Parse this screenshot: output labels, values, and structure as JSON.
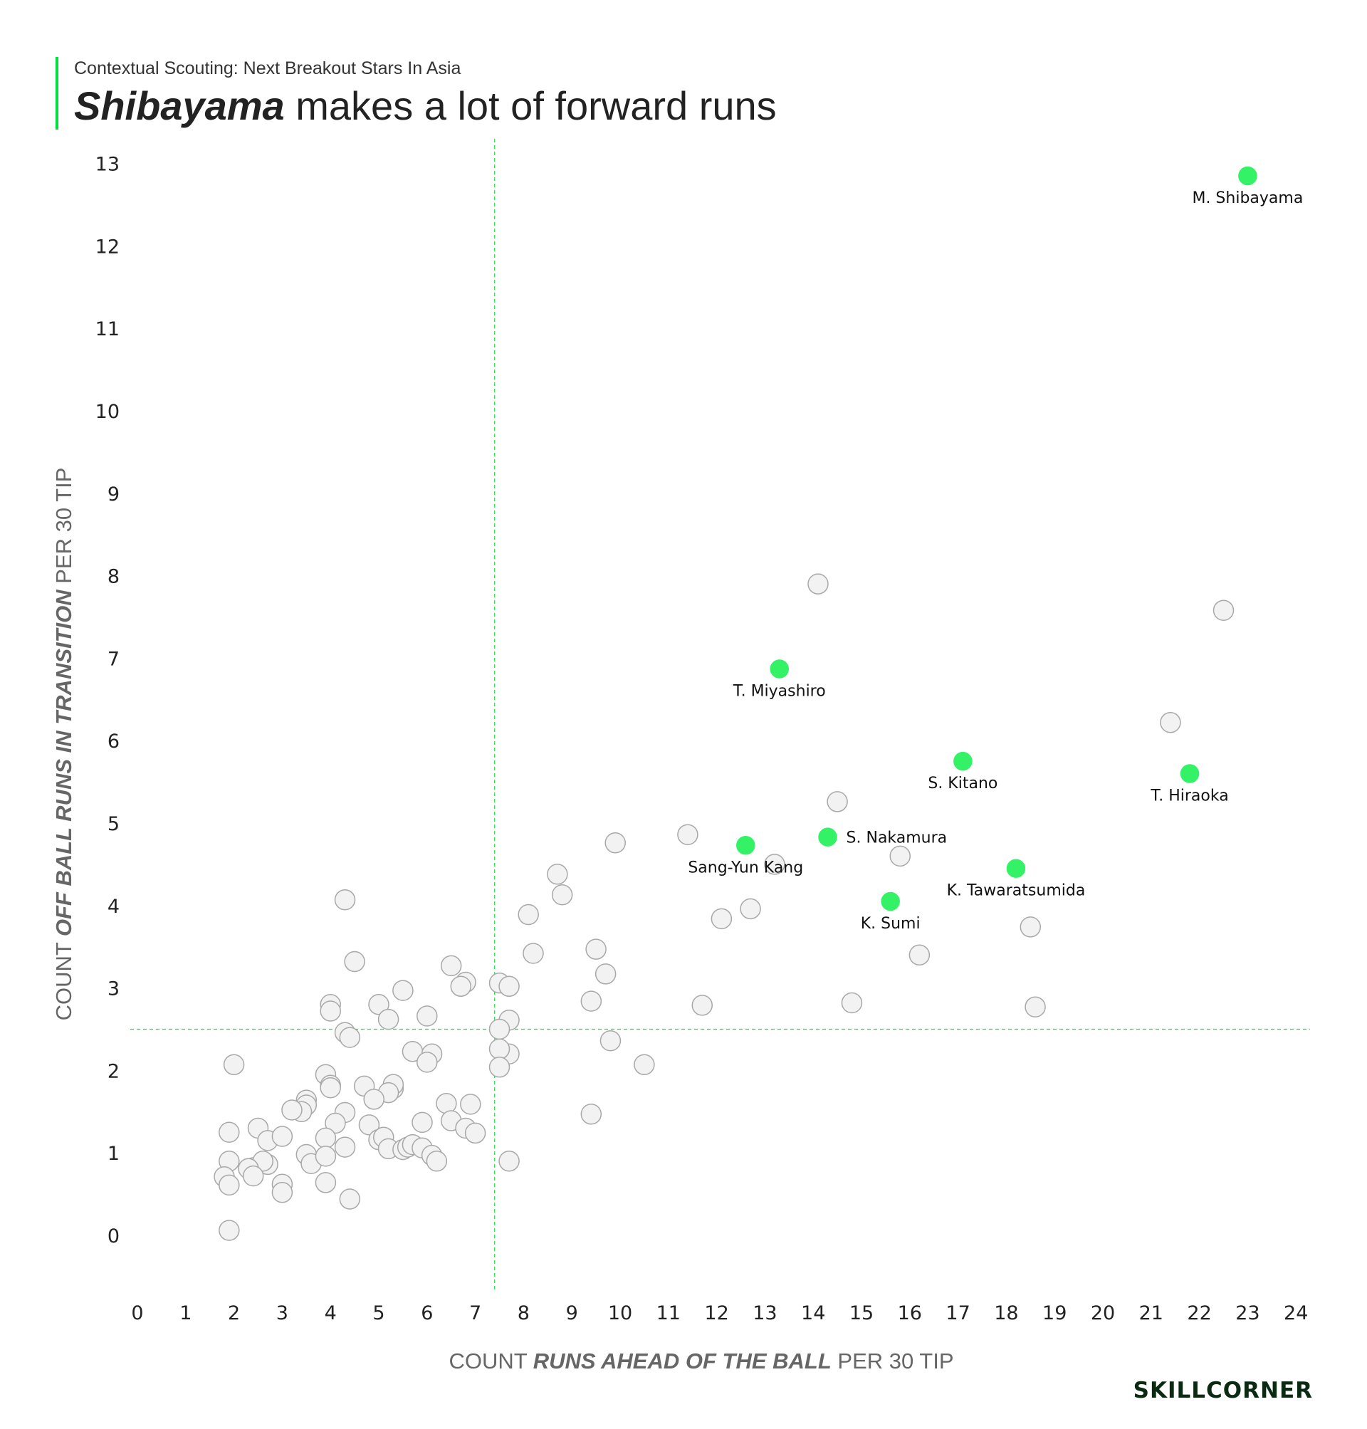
{
  "header": {
    "subtitle": "Contextual Scouting: Next Breakout Stars In Asia",
    "title_highlight": "Shibayama",
    "title_rest": "makes a lot of forward runs"
  },
  "logo": "SKILLCORNER",
  "colors": {
    "accent": "#33f265",
    "muted_fill": "#f2f2f2",
    "muted_stroke": "#a8a8a8",
    "guide": "#22d84a"
  },
  "chart_data": {
    "type": "scatter",
    "title": "Shibayama makes a lot of forward runs",
    "xlabel": {
      "prefix": "COUNT ",
      "bold": "RUNS AHEAD OF THE BALL",
      "suffix": " PER 30 TIP"
    },
    "ylabel": {
      "prefix": "COUNT ",
      "bold": "OFF BALL RUNS IN TRANSITION",
      "suffix": " PER 30 TIP"
    },
    "xlim": [
      0,
      24
    ],
    "ylim": [
      0,
      13
    ],
    "x_ticks": [
      0,
      1,
      2,
      3,
      4,
      5,
      6,
      7,
      8,
      9,
      10,
      11,
      12,
      13,
      14,
      15,
      16,
      17,
      18,
      19,
      20,
      21,
      22,
      23,
      24
    ],
    "y_ticks": [
      0,
      1,
      2,
      3,
      4,
      5,
      6,
      7,
      8,
      9,
      10,
      11,
      12,
      13
    ],
    "reference_lines": {
      "x": 7.4,
      "y": 2.5
    },
    "highlighted": [
      {
        "name": "M. Shibayama",
        "x": 23.0,
        "y": 12.85,
        "label_pos": "below"
      },
      {
        "name": "T. Miyashiro",
        "x": 13.3,
        "y": 6.87,
        "label_pos": "below"
      },
      {
        "name": "S. Kitano",
        "x": 17.1,
        "y": 5.75,
        "label_pos": "below"
      },
      {
        "name": "T. Hiraoka",
        "x": 21.8,
        "y": 5.6,
        "label_pos": "below"
      },
      {
        "name": "S. Nakamura",
        "x": 14.3,
        "y": 4.83,
        "label_pos": "right"
      },
      {
        "name": "Sang-Yun Kang",
        "x": 12.6,
        "y": 4.73,
        "label_pos": "below"
      },
      {
        "name": "K. Tawaratsumida",
        "x": 18.2,
        "y": 4.45,
        "label_pos": "below"
      },
      {
        "name": "K. Sumi",
        "x": 15.6,
        "y": 4.05,
        "label_pos": "below"
      }
    ],
    "others": [
      [
        14.1,
        7.9
      ],
      [
        22.5,
        7.58
      ],
      [
        21.4,
        6.22
      ],
      [
        14.5,
        5.26
      ],
      [
        11.4,
        4.86
      ],
      [
        9.9,
        4.76
      ],
      [
        13.2,
        4.5
      ],
      [
        15.8,
        4.6
      ],
      [
        8.7,
        4.38
      ],
      [
        8.8,
        4.13
      ],
      [
        4.3,
        4.07
      ],
      [
        8.1,
        3.89
      ],
      [
        12.1,
        3.84
      ],
      [
        12.7,
        3.96
      ],
      [
        18.5,
        3.74
      ],
      [
        9.5,
        3.47
      ],
      [
        8.2,
        3.42
      ],
      [
        16.2,
        3.4
      ],
      [
        4.5,
        3.32
      ],
      [
        6.5,
        3.27
      ],
      [
        9.7,
        3.17
      ],
      [
        6.8,
        3.07
      ],
      [
        7.5,
        3.06
      ],
      [
        7.7,
        3.02
      ],
      [
        6.7,
        3.02
      ],
      [
        5.5,
        2.97
      ],
      [
        9.4,
        2.84
      ],
      [
        14.8,
        2.82
      ],
      [
        5.0,
        2.8
      ],
      [
        11.7,
        2.79
      ],
      [
        18.6,
        2.77
      ],
      [
        4.0,
        2.8
      ],
      [
        4.0,
        2.72
      ],
      [
        5.2,
        2.62
      ],
      [
        6.0,
        2.66
      ],
      [
        7.7,
        2.61
      ],
      [
        7.5,
        2.5
      ],
      [
        4.3,
        2.46
      ],
      [
        4.4,
        2.4
      ],
      [
        9.8,
        2.36
      ],
      [
        7.7,
        2.2
      ],
      [
        5.7,
        2.23
      ],
      [
        6.1,
        2.2
      ],
      [
        6.0,
        2.1
      ],
      [
        7.5,
        2.26
      ],
      [
        2.0,
        2.07
      ],
      [
        10.5,
        2.07
      ],
      [
        7.5,
        2.04
      ],
      [
        3.9,
        1.95
      ],
      [
        4.0,
        1.82
      ],
      [
        4.0,
        1.79
      ],
      [
        4.7,
        1.81
      ],
      [
        5.3,
        1.78
      ],
      [
        5.3,
        1.83
      ],
      [
        5.2,
        1.73
      ],
      [
        4.9,
        1.65
      ],
      [
        3.5,
        1.64
      ],
      [
        3.5,
        1.58
      ],
      [
        3.4,
        1.5
      ],
      [
        3.2,
        1.52
      ],
      [
        4.3,
        1.49
      ],
      [
        6.4,
        1.6
      ],
      [
        6.9,
        1.59
      ],
      [
        9.4,
        1.47
      ],
      [
        5.9,
        1.37
      ],
      [
        6.5,
        1.39
      ],
      [
        4.1,
        1.36
      ],
      [
        4.8,
        1.34
      ],
      [
        6.8,
        1.3
      ],
      [
        7.0,
        1.24
      ],
      [
        1.9,
        1.25
      ],
      [
        2.5,
        1.3
      ],
      [
        2.7,
        1.15
      ],
      [
        3.0,
        1.2
      ],
      [
        3.9,
        1.18
      ],
      [
        4.3,
        1.07
      ],
      [
        5.0,
        1.16
      ],
      [
        5.1,
        1.19
      ],
      [
        5.2,
        1.05
      ],
      [
        5.5,
        1.04
      ],
      [
        5.6,
        1.07
      ],
      [
        5.7,
        1.1
      ],
      [
        5.9,
        1.06
      ],
      [
        6.1,
        0.97
      ],
      [
        6.2,
        0.9
      ],
      [
        7.7,
        0.9
      ],
      [
        3.5,
        0.98
      ],
      [
        3.6,
        0.87
      ],
      [
        3.9,
        0.96
      ],
      [
        2.4,
        0.82
      ],
      [
        2.7,
        0.86
      ],
      [
        2.6,
        0.9
      ],
      [
        2.3,
        0.81
      ],
      [
        2.4,
        0.72
      ],
      [
        1.9,
        0.9
      ],
      [
        1.8,
        0.71
      ],
      [
        1.9,
        0.61
      ],
      [
        3.0,
        0.62
      ],
      [
        3.0,
        0.52
      ],
      [
        3.9,
        0.64
      ],
      [
        4.4,
        0.44
      ],
      [
        1.9,
        0.06
      ]
    ]
  }
}
